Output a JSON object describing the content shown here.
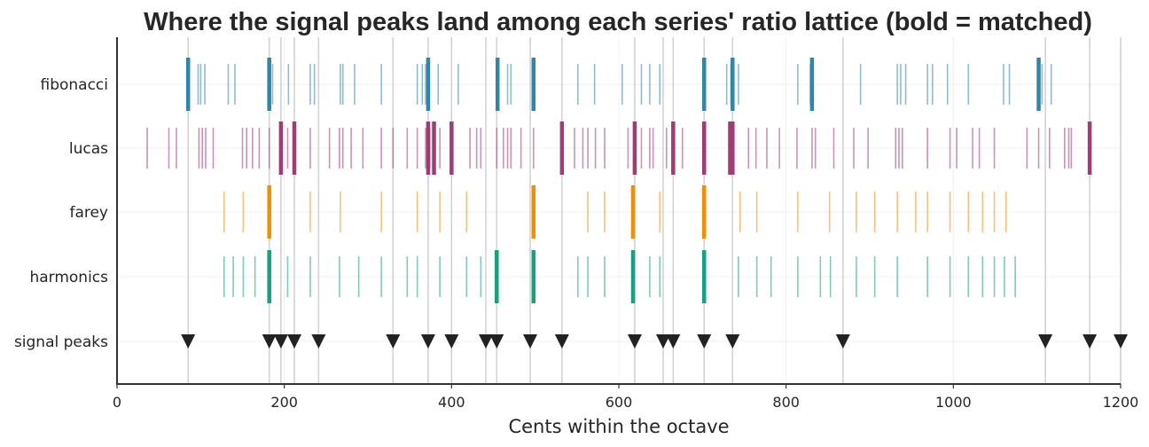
{
  "chart_data": {
    "type": "event-raster",
    "title": "Where the signal peaks land among each series' ratio lattice (bold = matched)",
    "xlabel": "Cents within the octave",
    "ylabel": "",
    "xlim": [
      0,
      1200
    ],
    "x_ticks": [
      0,
      200,
      400,
      600,
      800,
      1000,
      1200
    ],
    "grid": true,
    "rows": [
      "fibonacci",
      "lucas",
      "farey",
      "harmonics",
      "signal peaks"
    ],
    "signal_peaks": [
      85,
      182,
      196,
      212,
      241,
      330,
      372,
      400,
      441,
      454,
      494,
      532,
      619,
      653,
      665,
      702,
      736,
      868,
      1110,
      1163,
      1200
    ],
    "series": [
      {
        "name": "fibonacci",
        "color": "#2e86ab",
        "ticks": [
          85,
          97,
          100,
          105,
          133,
          141,
          182,
          183,
          186,
          205,
          231,
          236,
          267,
          270,
          284,
          316,
          359,
          365,
          369,
          372,
          384,
          408,
          455,
          467,
          471,
          498,
          551,
          571,
          604,
          627,
          637,
          649,
          702,
          729,
          734,
          737,
          743,
          814,
          829,
          831,
          889,
          933,
          937,
          943,
          969,
          975,
          993,
          1018,
          1060,
          1067,
          1102,
          1106,
          1117
        ],
        "matched": [
          85,
          182,
          372,
          455,
          498,
          702,
          736,
          831,
          1102
        ]
      },
      {
        "name": "lucas",
        "color": "#a23b72",
        "ticks": [
          36,
          62,
          71,
          98,
          102,
          106,
          115,
          150,
          155,
          162,
          170,
          182,
          196,
          204,
          212,
          231,
          254,
          266,
          270,
          280,
          294,
          316,
          330,
          347,
          359,
          369,
          374,
          379,
          386,
          400,
          422,
          430,
          435,
          454,
          462,
          467,
          471,
          483,
          498,
          532,
          547,
          557,
          563,
          572,
          583,
          611,
          619,
          627,
          637,
          641,
          657,
          665,
          676,
          702,
          733,
          736,
          755,
          764,
          777,
          792,
          813,
          831,
          835,
          857,
          881,
          898,
          931,
          935,
          939,
          969,
          996,
          1004,
          1023,
          1031,
          1049,
          1088,
          1102,
          1115,
          1133,
          1138,
          1141,
          1163
        ],
        "matched": [
          196,
          212,
          372,
          379,
          400,
          532,
          619,
          665,
          702,
          733,
          736,
          1163
        ]
      },
      {
        "name": "farey",
        "color": "#f18f01",
        "ticks": [
          128,
          151,
          182,
          231,
          267,
          316,
          359,
          386,
          418,
          498,
          563,
          583,
          617,
          649,
          702,
          745,
          765,
          814,
          852,
          884,
          906,
          933,
          955,
          969,
          996,
          1018,
          1035,
          1049,
          1063
        ],
        "matched": [
          182,
          498,
          617,
          702
        ]
      },
      {
        "name": "harmonics",
        "color": "#13a37f",
        "ticks": [
          128,
          139,
          151,
          165,
          182,
          204,
          231,
          266,
          289,
          316,
          347,
          359,
          386,
          418,
          435,
          454,
          498,
          551,
          563,
          583,
          617,
          637,
          649,
          702,
          743,
          765,
          782,
          814,
          841,
          853,
          884,
          906,
          933,
          969,
          996,
          1018,
          1035,
          1049,
          1061,
          1074
        ],
        "matched": [
          182,
          454,
          498,
          617,
          702
        ]
      }
    ]
  }
}
